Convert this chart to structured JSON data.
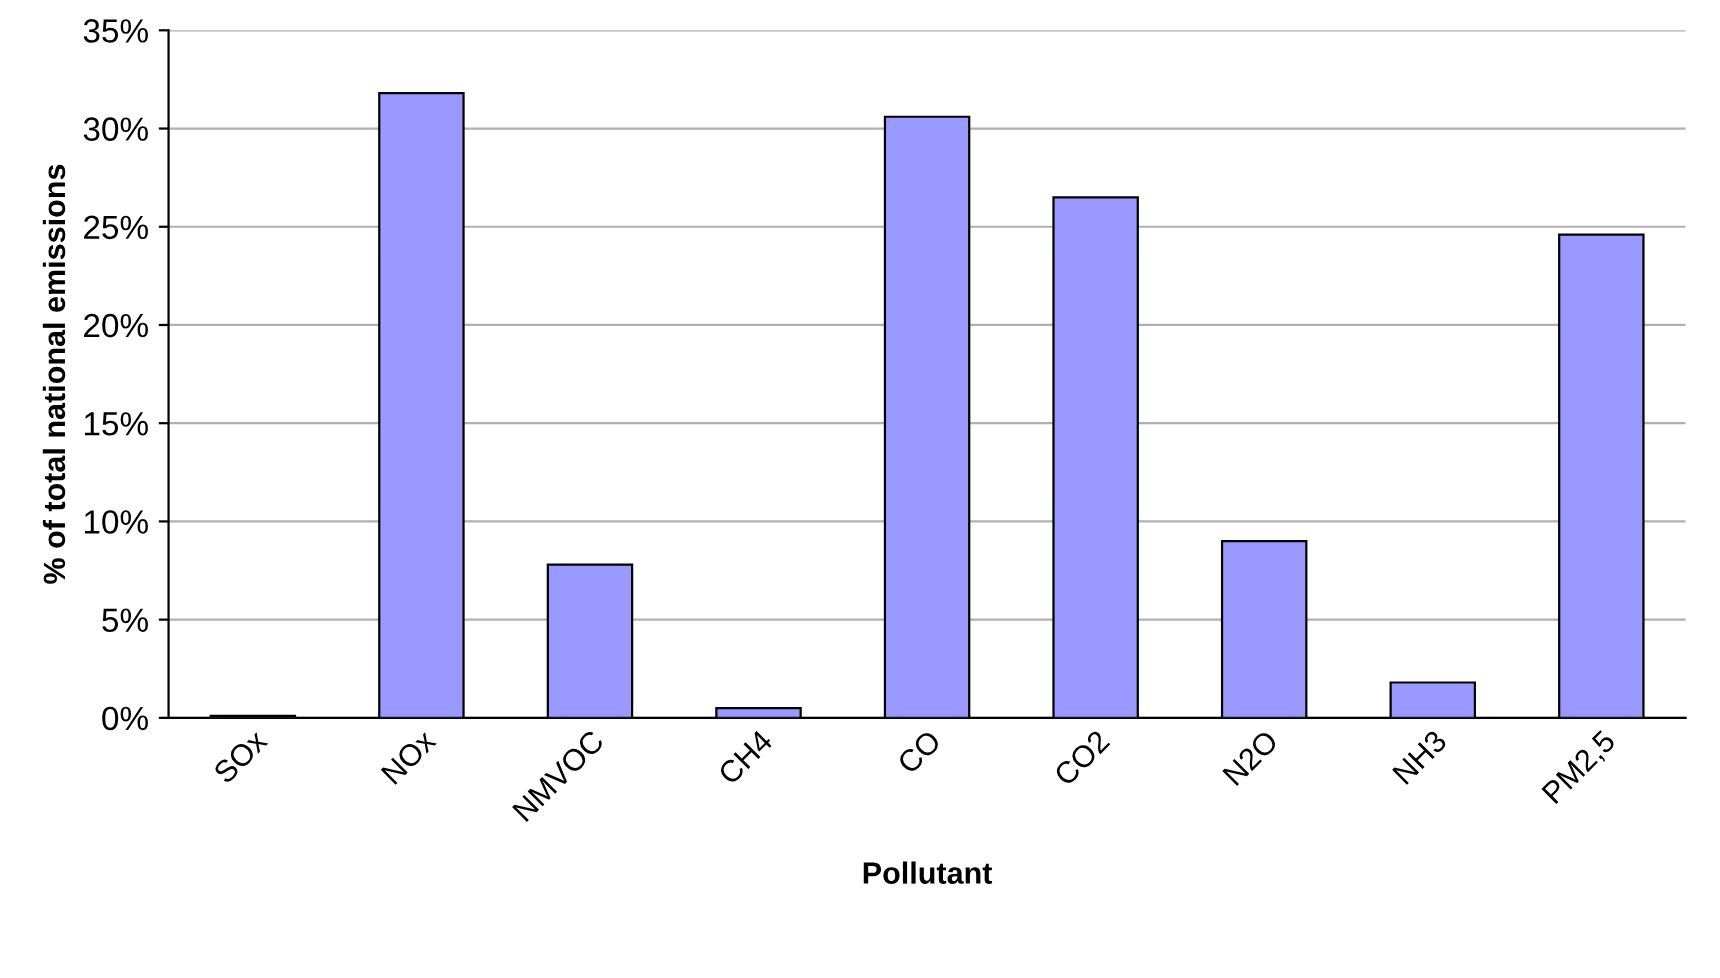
{
  "chart_data": {
    "type": "bar",
    "xlabel": "Pollutant",
    "ylabel": "% of total national emissions",
    "categories": [
      "SOx",
      "NOx",
      "NMVOC",
      "CH4",
      "CO",
      "CO2",
      "N2O",
      "NH3",
      "PM2,5"
    ],
    "values": [
      0.1,
      31.8,
      7.8,
      0.5,
      30.6,
      26.5,
      9.0,
      1.8,
      24.6
    ],
    "color": "#9999ff",
    "ylim": [
      0,
      35
    ],
    "yticks": [
      {
        "value": 0,
        "label": "0%"
      },
      {
        "value": 5,
        "label": "5%"
      },
      {
        "value": 10,
        "label": "10%"
      },
      {
        "value": 15,
        "label": "15%"
      },
      {
        "value": 20,
        "label": "20%"
      },
      {
        "value": 25,
        "label": "25%"
      },
      {
        "value": 30,
        "label": "30%"
      },
      {
        "value": 35,
        "label": "35%"
      }
    ],
    "grid": "y",
    "legend": false
  }
}
